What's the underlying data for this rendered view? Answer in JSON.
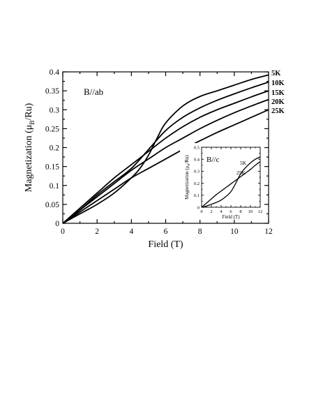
{
  "chart_data": [
    {
      "type": "line",
      "xlabel": "Field (T)",
      "ylabel": "Magnetization (μ",
      "ylabel_sub": "B",
      "ylabel_tail": "/Ru)",
      "xlim": [
        0,
        12
      ],
      "ylim": [
        0,
        0.4
      ],
      "xticks": [
        "0",
        "2",
        "4",
        "6",
        "8",
        "10",
        "12"
      ],
      "yticks": [
        "0",
        "0.05",
        "0.1",
        "0.15",
        "0.2",
        "0.25",
        "0.3",
        "0.35",
        "0.4"
      ],
      "annotation": "B//ab",
      "series": [
        {
          "name": "5K",
          "x": [
            0,
            1,
            2,
            3,
            4,
            4.5,
            5,
            5.5,
            6,
            7,
            8,
            9,
            10,
            11,
            12
          ],
          "y": [
            0,
            0.025,
            0.05,
            0.08,
            0.12,
            0.145,
            0.18,
            0.225,
            0.265,
            0.31,
            0.335,
            0.35,
            0.365,
            0.38,
            0.392
          ]
        },
        {
          "name": "10K",
          "x": [
            0,
            1,
            2,
            3,
            4,
            5,
            6,
            7,
            8,
            9,
            10,
            11,
            12
          ],
          "y": [
            0,
            0.035,
            0.075,
            0.11,
            0.145,
            0.195,
            0.245,
            0.28,
            0.305,
            0.325,
            0.342,
            0.358,
            0.373
          ]
        },
        {
          "name": "15K",
          "x": [
            0,
            1,
            2,
            3,
            4,
            5,
            6,
            7,
            8,
            9,
            10,
            11,
            12
          ],
          "y": [
            0,
            0.04,
            0.08,
            0.12,
            0.155,
            0.19,
            0.225,
            0.255,
            0.28,
            0.3,
            0.317,
            0.334,
            0.35
          ]
        },
        {
          "name": "20K",
          "x": [
            0,
            1,
            2,
            3,
            4,
            5,
            6,
            7,
            8,
            9,
            10,
            11,
            12
          ],
          "y": [
            0,
            0.035,
            0.07,
            0.105,
            0.14,
            0.17,
            0.2,
            0.225,
            0.25,
            0.272,
            0.292,
            0.31,
            0.327
          ]
        },
        {
          "name": "25K",
          "x": [
            0,
            1,
            2,
            3,
            4,
            5,
            6,
            7,
            8,
            9,
            10,
            11,
            12
          ],
          "y": [
            0,
            0.03,
            0.06,
            0.09,
            0.12,
            0.145,
            0.17,
            0.195,
            0.218,
            0.24,
            0.26,
            0.28,
            0.3
          ]
        }
      ]
    },
    {
      "type": "line",
      "xlabel": "Field (T)",
      "ylabel": "Magnetization (μ",
      "ylabel_sub": "B",
      "ylabel_tail": "/Ru)",
      "xlim": [
        0,
        12
      ],
      "ylim": [
        0,
        0.5
      ],
      "xticks": [
        "0",
        "2",
        "4",
        "6",
        "8",
        "10",
        "12"
      ],
      "yticks": [
        "0",
        "0.1",
        "0.2",
        "0.3",
        "0.4",
        "0.5"
      ],
      "annotation": "B//c",
      "series": [
        {
          "name": "5K",
          "x": [
            0,
            1,
            2,
            3,
            4,
            5,
            6,
            7,
            8,
            9,
            10,
            11,
            12
          ],
          "y": [
            0,
            0.01,
            0.025,
            0.04,
            0.06,
            0.09,
            0.13,
            0.2,
            0.28,
            0.33,
            0.37,
            0.4,
            0.42
          ]
        },
        {
          "name": "25K",
          "x": [
            0,
            1,
            2,
            3,
            4,
            5,
            6,
            7,
            8,
            9,
            10,
            11,
            12
          ],
          "y": [
            0,
            0.035,
            0.07,
            0.105,
            0.135,
            0.165,
            0.195,
            0.225,
            0.255,
            0.285,
            0.315,
            0.35,
            0.38
          ]
        }
      ]
    }
  ]
}
